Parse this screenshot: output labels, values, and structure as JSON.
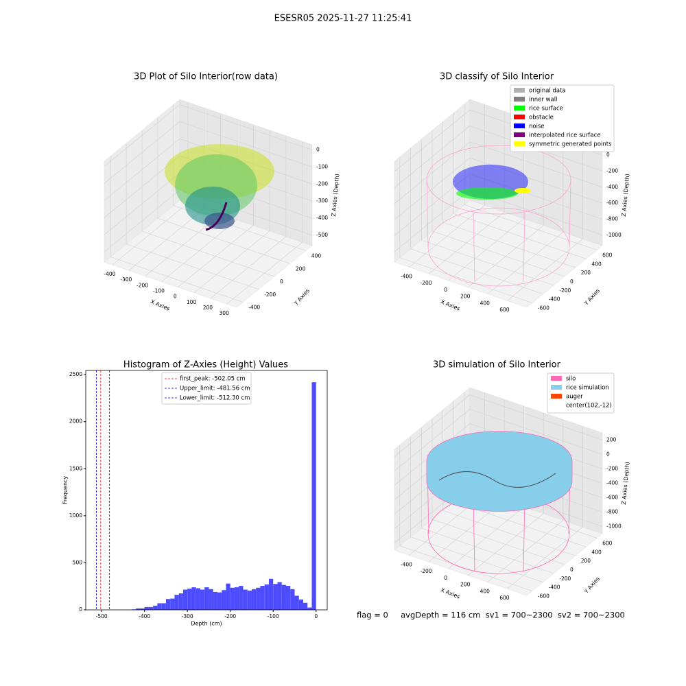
{
  "title": "ESESR05 2025-11-27 11:25:41",
  "footer": "flag = 0     avgDepth = 116 cm  sv1 = 700~2300  sv2 = 700~2300",
  "chart_data": [
    {
      "type": "scatter3d",
      "title": "3D Plot of Silo Interior(row data)",
      "xlabel": "X Axies",
      "ylabel": "Y Axies",
      "zlabel": "Z Axies (Depth)",
      "xlim": [
        -450,
        360
      ],
      "ylim": [
        -480,
        480
      ],
      "zlim": [
        -560,
        30
      ],
      "xticks": [
        -400,
        -300,
        -200,
        -100,
        0,
        100,
        200,
        300
      ],
      "yticks": [
        -400,
        -200,
        0,
        200,
        400
      ],
      "zticks": [
        -500,
        -400,
        -300,
        -200,
        -100,
        0
      ]
    },
    {
      "type": "scatter3d",
      "title": "3D classify of Silo Interior",
      "xlabel": "X Axies",
      "ylabel": "Y Axies",
      "zlabel": "Z Axies (Depth)",
      "xlim": [
        -550,
        800
      ],
      "ylim": [
        -700,
        700
      ],
      "zlim": [
        -1130,
        130
      ],
      "xticks": [
        -400,
        -200,
        0,
        200,
        400,
        600
      ],
      "yticks": [
        -600,
        -400,
        -200,
        0,
        200,
        400,
        600
      ],
      "zticks": [
        -1000,
        -800,
        -600,
        -400,
        -200,
        0
      ],
      "legend": [
        {
          "name": "original data",
          "color": "#b0b0b0"
        },
        {
          "name": "inner wall",
          "color": "#808080"
        },
        {
          "name": "rice surface",
          "color": "#00ff00"
        },
        {
          "name": "obstacle",
          "color": "#ff0000"
        },
        {
          "name": "noise",
          "color": "#0000ff"
        },
        {
          "name": "interpolated rice surface",
          "color": "#800080"
        },
        {
          "name": "symmetric generated points",
          "color": "#ffff00"
        }
      ]
    },
    {
      "type": "histogram",
      "title": "Histogram of Z-Axies (Height) Values",
      "xlabel": "Depth (cm)",
      "ylabel": "Frequency",
      "color": "#4d4dff",
      "xlim": [
        -537,
        26
      ],
      "ylim": [
        0,
        2545
      ],
      "xticks": [
        -500,
        -400,
        -300,
        -200,
        -100,
        0
      ],
      "yticks": [
        0,
        500,
        1000,
        1500,
        2000,
        2500
      ],
      "bins": [
        -430,
        -420,
        -410,
        -400,
        -390,
        -380,
        -370,
        -360,
        -350,
        -340,
        -330,
        -320,
        -310,
        -300,
        -290,
        -280,
        -270,
        -260,
        -250,
        -240,
        -230,
        -220,
        -210,
        -200,
        -190,
        -180,
        -170,
        -160,
        -150,
        -140,
        -130,
        -120,
        -110,
        -100,
        -90,
        -80,
        -70,
        -60,
        -50,
        -40,
        -30,
        -20,
        -10,
        0
      ],
      "counts": [
        5,
        15,
        15,
        30,
        30,
        45,
        70,
        70,
        115,
        120,
        160,
        175,
        215,
        225,
        240,
        230,
        215,
        240,
        220,
        190,
        185,
        210,
        280,
        235,
        240,
        255,
        215,
        205,
        220,
        235,
        255,
        270,
        330,
        275,
        295,
        265,
        255,
        220,
        150,
        110,
        75,
        25,
        2420
      ],
      "vlines": [
        {
          "name": "first_peak: -502.05 cm",
          "value": -502.05,
          "color": "#ff0000"
        },
        {
          "name": "Upper_limit: -481.56 cm",
          "value": -481.56,
          "color": "#0000ff"
        },
        {
          "name": "Lower_limit: -512.30 cm",
          "value": -512.3,
          "color": "#0000ff"
        }
      ],
      "legend_loc": "upper center"
    },
    {
      "type": "surface3d",
      "title": "3D simulation of Silo Interior",
      "xlabel": "X Axies",
      "ylabel": "Y Axies",
      "zlabel": "Z Axies (Depth)",
      "xlim": [
        -550,
        800
      ],
      "ylim": [
        -700,
        700
      ],
      "zlim": [
        -1100,
        300
      ],
      "xticks": [
        -400,
        -200,
        0,
        200,
        400,
        600
      ],
      "yticks": [
        -600,
        -400,
        -200,
        0,
        200,
        400,
        600
      ],
      "zticks": [
        -1000,
        -800,
        -600,
        -400,
        -200,
        0,
        200
      ],
      "legend": [
        {
          "name": "silo",
          "color": "#ff69b4"
        },
        {
          "name": "rice simulation",
          "color": "#87ceeb"
        },
        {
          "name": "auger",
          "color": "#ff4500"
        },
        {
          "name": "center(102,-12)"
        }
      ]
    }
  ]
}
